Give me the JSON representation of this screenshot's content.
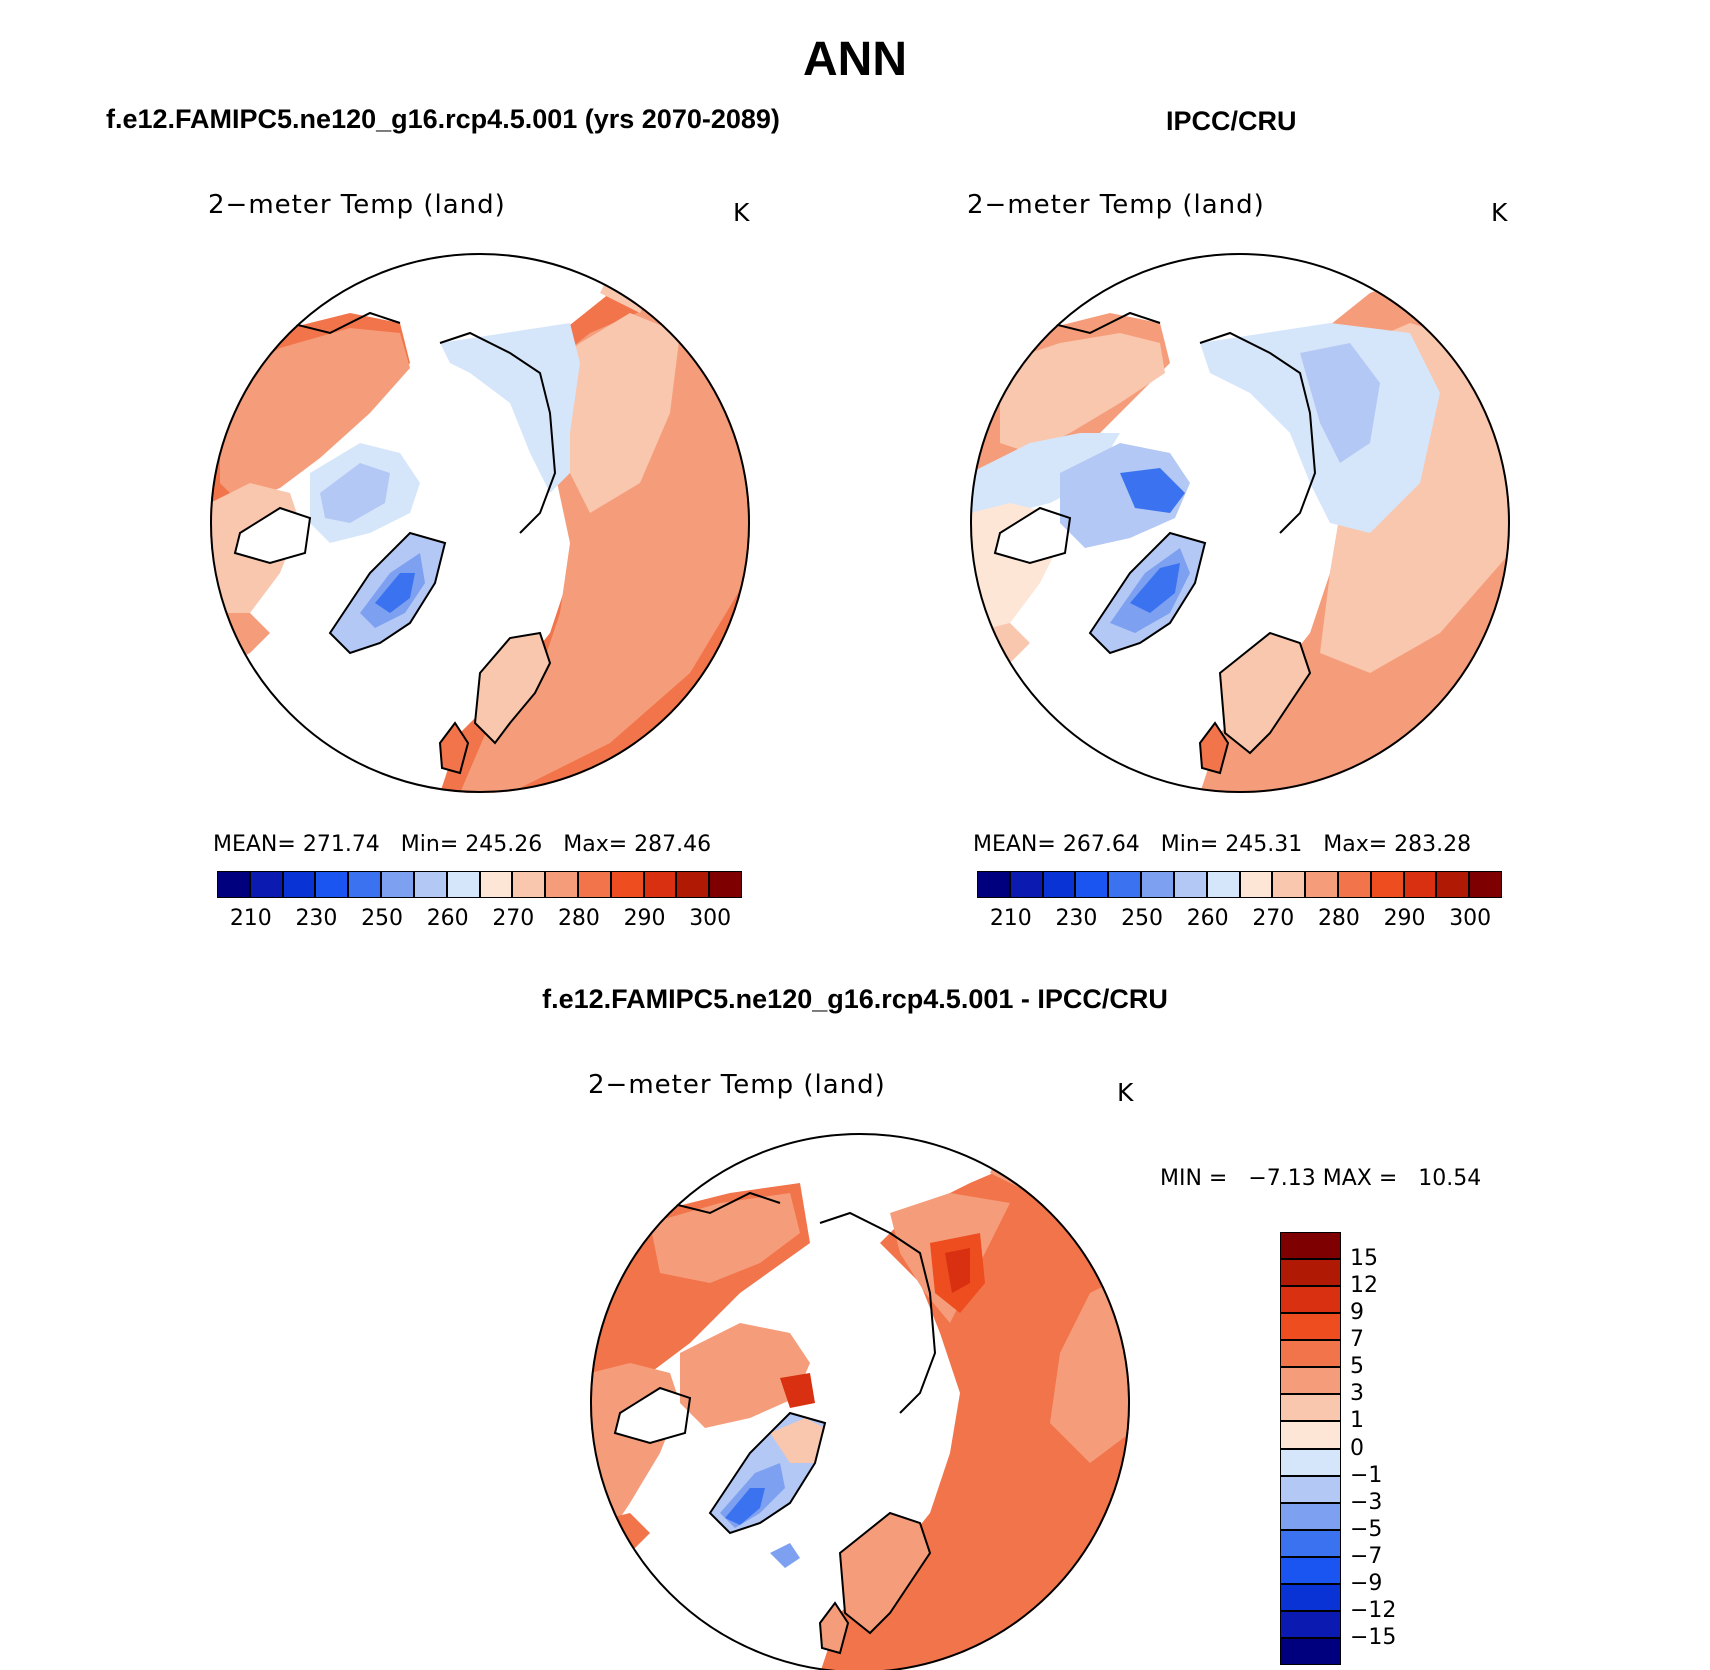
{
  "figure": {
    "title": "ANN"
  },
  "panels": [
    {
      "id": "model",
      "title": "f.e12.FAMIPC5.ne120_g16.rcp4.5.001 (yrs 2070-2089)",
      "variable": "2−meter Temp (land)",
      "unit": "K",
      "stats": {
        "mean_label": "MEAN=",
        "mean": "271.74",
        "min_label": "Min=",
        "min": "245.26",
        "max_label": "Max=",
        "max": "287.46"
      },
      "colorbar": {
        "ticks": [
          "210",
          "230",
          "250",
          "260",
          "270",
          "280",
          "290",
          "300"
        ]
      }
    },
    {
      "id": "obs",
      "title": "IPCC/CRU",
      "variable": "2−meter Temp (land)",
      "unit": "K",
      "stats": {
        "mean_label": "MEAN=",
        "mean": "267.64",
        "min_label": "Min=",
        "min": "245.31",
        "max_label": "Max=",
        "max": "283.28"
      },
      "colorbar": {
        "ticks": [
          "210",
          "230",
          "250",
          "260",
          "270",
          "280",
          "290",
          "300"
        ]
      }
    },
    {
      "id": "diff",
      "title": "f.e12.FAMIPC5.ne120_g16.rcp4.5.001 - IPCC/CRU",
      "variable": "2−meter Temp (land)",
      "unit": "K",
      "stats": {
        "min_label": "MIN =",
        "min": "−7.13",
        "max_label": "MAX =",
        "max": "10.54"
      },
      "colorbar": {
        "ticks": [
          "15",
          "12",
          "9",
          "7",
          "5",
          "3",
          "1",
          "0",
          "−1",
          "−3",
          "−5",
          "−7",
          "−9",
          "−12",
          "−15"
        ]
      }
    }
  ],
  "colors": {
    "abs_scale": [
      "#00007f",
      "#0b1ab0",
      "#0a33d6",
      "#1a55f2",
      "#3a72f0",
      "#7da0f0",
      "#b3c8f5",
      "#d6e6fa",
      "#fde6d6",
      "#f9c6ae",
      "#f59d7a",
      "#f2744b",
      "#ed4d1f",
      "#d83010",
      "#b01a05",
      "#7f0000"
    ],
    "diff_scale": [
      "#7f0000",
      "#b01a05",
      "#d83010",
      "#ed4d1f",
      "#f2744b",
      "#f59d7a",
      "#f9c6ae",
      "#fde6d6",
      "#d6e6fa",
      "#b3c8f5",
      "#7da0f0",
      "#3a72f0",
      "#1a55f2",
      "#0a33d6",
      "#0b1ab0",
      "#00007f"
    ]
  }
}
